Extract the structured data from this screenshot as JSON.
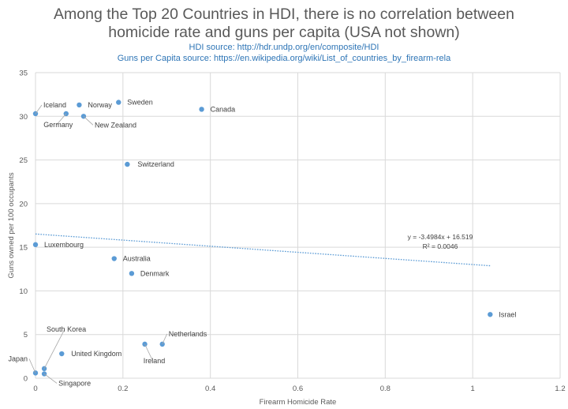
{
  "chart_data": {
    "type": "scatter",
    "title_line1": "Among the Top 20 Countries in HDI, there is no correlation between",
    "title_line2": "homicide rate and guns per capita (USA not shown)",
    "subtitle1": "HDI source: http://hdr.undp.org/en/composite/HDI",
    "subtitle2": "Guns per Capita source: https://en.wikipedia.org/wiki/List_of_countries_by_firearm-rela",
    "xlabel": "Firearm Homicide Rate",
    "ylabel": "Guns owned per 100 occupants",
    "xlim": [
      0,
      1.2
    ],
    "ylim": [
      0,
      35
    ],
    "xticks": [
      0,
      0.2,
      0.4,
      0.6,
      0.8,
      1,
      1.2
    ],
    "xtick_labels": [
      "0",
      "0.2",
      "0.4",
      "0.6",
      "0.8",
      "1",
      "1.2"
    ],
    "yticks": [
      0,
      5,
      10,
      15,
      20,
      25,
      30,
      35
    ],
    "ytick_labels": [
      "0",
      "5",
      "10",
      "15",
      "20",
      "25",
      "30",
      "35"
    ],
    "grid": true,
    "point_color": "#5b9bd5",
    "points": [
      {
        "label": "Iceland",
        "x": 0.0,
        "y": 30.3
      },
      {
        "label": "Germany",
        "x": 0.07,
        "y": 30.3
      },
      {
        "label": "Norway",
        "x": 0.1,
        "y": 31.3
      },
      {
        "label": "New Zealand",
        "x": 0.11,
        "y": 30.0
      },
      {
        "label": "Sweden",
        "x": 0.19,
        "y": 31.6
      },
      {
        "label": "Canada",
        "x": 0.38,
        "y": 30.8
      },
      {
        "label": "Switzerland",
        "x": 0.21,
        "y": 24.5
      },
      {
        "label": "Luxembourg",
        "x": 0.0,
        "y": 15.3
      },
      {
        "label": "Australia",
        "x": 0.18,
        "y": 13.7
      },
      {
        "label": "Denmark",
        "x": 0.22,
        "y": 12.0
      },
      {
        "label": "Israel",
        "x": 1.04,
        "y": 7.3
      },
      {
        "label": "Netherlands",
        "x": 0.29,
        "y": 3.9
      },
      {
        "label": "Ireland",
        "x": 0.25,
        "y": 3.9
      },
      {
        "label": "United Kingdom",
        "x": 0.06,
        "y": 2.8
      },
      {
        "label": "South Korea",
        "x": 0.02,
        "y": 1.1
      },
      {
        "label": "Japan",
        "x": 0.0,
        "y": 0.6
      },
      {
        "label": "Singapore",
        "x": 0.02,
        "y": 0.5
      }
    ],
    "trendline": {
      "slope": -3.4984,
      "intercept": 16.519,
      "x_range": [
        0,
        1.04
      ],
      "color": "#5b9bd5",
      "equation": "y = -3.4984x + 16.519",
      "r_squared": "R² = 0.0046"
    }
  }
}
